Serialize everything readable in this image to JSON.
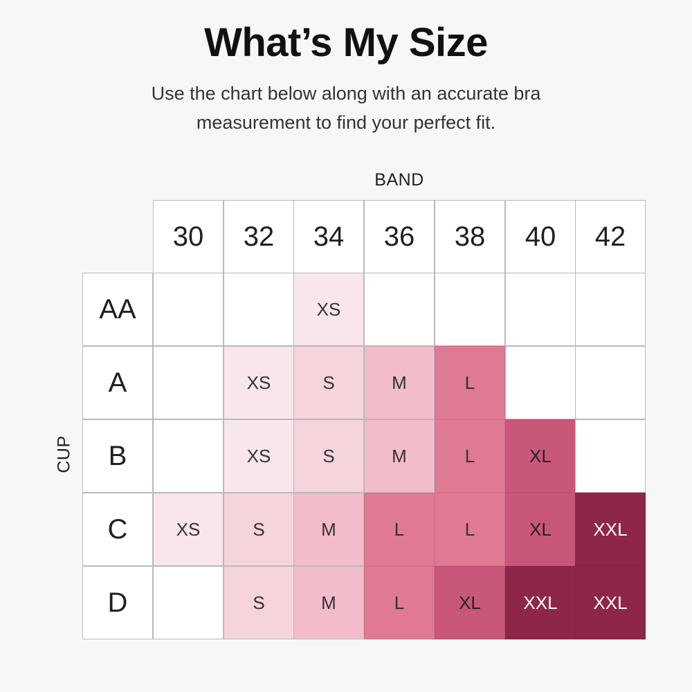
{
  "title": "What’s My Size",
  "subtitle": "Use the chart below along with an accurate bra measurement to find your perfect fit.",
  "band_label": "BAND",
  "cup_label": "CUP",
  "bands": [
    "30",
    "32",
    "34",
    "36",
    "38",
    "40",
    "42"
  ],
  "cups": [
    "AA",
    "A",
    "B",
    "C",
    "D"
  ],
  "sizes": [
    [
      "",
      "",
      "XS",
      "",
      "",
      "",
      ""
    ],
    [
      "",
      "XS",
      "S",
      "M",
      "L",
      "",
      ""
    ],
    [
      "",
      "XS",
      "S",
      "M",
      "L",
      "XL",
      ""
    ],
    [
      "XS",
      "S",
      "M",
      "L",
      "L",
      "XL",
      "XXL"
    ],
    [
      "",
      "S",
      "M",
      "L",
      "XL",
      "XXL",
      "XXL"
    ]
  ],
  "size_colors": {
    "XS": "#f9e6ea",
    "S": "#f6d4dc",
    "M": "#f2bccb",
    "L": "#e07993",
    "XL": "#c9577a",
    "XXL": "#8e2747",
    "empty": "#ffffff"
  },
  "size_text_colors": {
    "XS": "#333333",
    "S": "#333333",
    "M": "#333333",
    "L": "#333333",
    "XL": "#222222",
    "XXL": "#ffffff"
  }
}
